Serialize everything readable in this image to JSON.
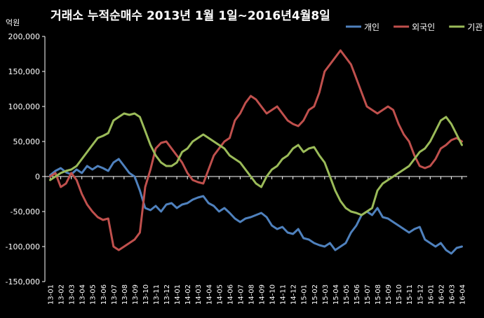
{
  "chart_data": {
    "type": "line",
    "title": "거래소  누적순매수 2013년 1월 1일~2016년4월8일",
    "ylabel": "억원",
    "xlabel": "",
    "ylim": [
      -150000,
      200000
    ],
    "yticks": [
      200000,
      150000,
      100000,
      50000,
      0,
      -50000,
      -100000,
      -150000
    ],
    "ytick_labels": [
      "200,000",
      "150,000",
      "100,000",
      "50,000",
      "0",
      "-50,000",
      "-100,000",
      "-150,000"
    ],
    "categories": [
      "13-01",
      "13-02",
      "13-03",
      "13-04",
      "13-05",
      "13-06",
      "13-07",
      "13-08",
      "13-09",
      "13-10",
      "13-11",
      "13-12",
      "14-01",
      "14-02",
      "14-03",
      "14-04",
      "14-05",
      "14-06",
      "14-07",
      "14-08",
      "14-09",
      "14-10",
      "14-11",
      "14-12",
      "15-01",
      "15-02",
      "15-03",
      "15-04",
      "15-05",
      "15-06",
      "15-07",
      "15-08",
      "15-09",
      "15-10",
      "15-11",
      "15-12",
      "16-01",
      "16-02",
      "16-03",
      "16-04"
    ],
    "legend_position": "top-right",
    "grid": false,
    "series": [
      {
        "name": "개인",
        "color": "#4F81BD",
        "points": [
          [
            0,
            2000
          ],
          [
            0.5,
            8000
          ],
          [
            1,
            12000
          ],
          [
            1.5,
            6000
          ],
          [
            2,
            3000
          ],
          [
            2.5,
            10000
          ],
          [
            3,
            5000
          ],
          [
            3.5,
            15000
          ],
          [
            4,
            10000
          ],
          [
            4.5,
            15000
          ],
          [
            5,
            12000
          ],
          [
            5.5,
            8000
          ],
          [
            6,
            20000
          ],
          [
            6.5,
            25000
          ],
          [
            7,
            15000
          ],
          [
            7.5,
            5000
          ],
          [
            8,
            0
          ],
          [
            8.5,
            -20000
          ],
          [
            9,
            -45000
          ],
          [
            9.5,
            -48000
          ],
          [
            10,
            -42000
          ],
          [
            10.5,
            -50000
          ],
          [
            11,
            -40000
          ],
          [
            11.5,
            -38000
          ],
          [
            12,
            -45000
          ],
          [
            12.5,
            -40000
          ],
          [
            13,
            -38000
          ],
          [
            13.5,
            -33000
          ],
          [
            14,
            -30000
          ],
          [
            14.5,
            -28000
          ],
          [
            15,
            -38000
          ],
          [
            15.5,
            -42000
          ],
          [
            16,
            -50000
          ],
          [
            16.5,
            -45000
          ],
          [
            17,
            -52000
          ],
          [
            17.5,
            -60000
          ],
          [
            18,
            -65000
          ],
          [
            18.5,
            -60000
          ],
          [
            19,
            -58000
          ],
          [
            19.5,
            -55000
          ],
          [
            20,
            -52000
          ],
          [
            20.5,
            -58000
          ],
          [
            21,
            -70000
          ],
          [
            21.5,
            -75000
          ],
          [
            22,
            -72000
          ],
          [
            22.5,
            -80000
          ],
          [
            23,
            -82000
          ],
          [
            23.5,
            -75000
          ],
          [
            24,
            -88000
          ],
          [
            24.5,
            -90000
          ],
          [
            25,
            -95000
          ],
          [
            25.5,
            -98000
          ],
          [
            26,
            -100000
          ],
          [
            26.5,
            -95000
          ],
          [
            27,
            -105000
          ],
          [
            27.5,
            -100000
          ],
          [
            28,
            -95000
          ],
          [
            28.5,
            -80000
          ],
          [
            29,
            -70000
          ],
          [
            29.5,
            -55000
          ],
          [
            30,
            -50000
          ],
          [
            30.5,
            -55000
          ],
          [
            31,
            -45000
          ],
          [
            31.5,
            -58000
          ],
          [
            32,
            -60000
          ],
          [
            32.5,
            -65000
          ],
          [
            33,
            -70000
          ],
          [
            33.5,
            -75000
          ],
          [
            34,
            -80000
          ],
          [
            34.5,
            -75000
          ],
          [
            35,
            -72000
          ],
          [
            35.5,
            -90000
          ],
          [
            36,
            -95000
          ],
          [
            36.5,
            -100000
          ],
          [
            37,
            -95000
          ],
          [
            37.5,
            -105000
          ],
          [
            38,
            -110000
          ],
          [
            38.5,
            -102000
          ],
          [
            39,
            -100000
          ]
        ]
      },
      {
        "name": "외국인",
        "color": "#C0504D",
        "points": [
          [
            0,
            0
          ],
          [
            0.5,
            5000
          ],
          [
            1,
            -15000
          ],
          [
            1.5,
            -10000
          ],
          [
            2,
            5000
          ],
          [
            2.5,
            -5000
          ],
          [
            3,
            -25000
          ],
          [
            3.5,
            -40000
          ],
          [
            4,
            -50000
          ],
          [
            4.5,
            -58000
          ],
          [
            5,
            -62000
          ],
          [
            5.5,
            -60000
          ],
          [
            6,
            -100000
          ],
          [
            6.5,
            -105000
          ],
          [
            7,
            -100000
          ],
          [
            7.5,
            -95000
          ],
          [
            8,
            -90000
          ],
          [
            8.5,
            -80000
          ],
          [
            9,
            -15000
          ],
          [
            9.5,
            10000
          ],
          [
            10,
            40000
          ],
          [
            10.5,
            48000
          ],
          [
            11,
            50000
          ],
          [
            11.5,
            40000
          ],
          [
            12,
            30000
          ],
          [
            12.5,
            20000
          ],
          [
            13,
            5000
          ],
          [
            13.5,
            -5000
          ],
          [
            14,
            -8000
          ],
          [
            14.5,
            -10000
          ],
          [
            15,
            10000
          ],
          [
            15.5,
            30000
          ],
          [
            16,
            40000
          ],
          [
            16.5,
            50000
          ],
          [
            17,
            55000
          ],
          [
            17.5,
            80000
          ],
          [
            18,
            90000
          ],
          [
            18.5,
            105000
          ],
          [
            19,
            115000
          ],
          [
            19.5,
            110000
          ],
          [
            20,
            100000
          ],
          [
            20.5,
            90000
          ],
          [
            21,
            95000
          ],
          [
            21.5,
            100000
          ],
          [
            22,
            90000
          ],
          [
            22.5,
            80000
          ],
          [
            23,
            75000
          ],
          [
            23.5,
            72000
          ],
          [
            24,
            80000
          ],
          [
            24.5,
            95000
          ],
          [
            25,
            100000
          ],
          [
            25.5,
            120000
          ],
          [
            26,
            150000
          ],
          [
            26.5,
            160000
          ],
          [
            27,
            170000
          ],
          [
            27.5,
            180000
          ],
          [
            28,
            170000
          ],
          [
            28.5,
            160000
          ],
          [
            29,
            140000
          ],
          [
            29.5,
            120000
          ],
          [
            30,
            100000
          ],
          [
            30.5,
            95000
          ],
          [
            31,
            90000
          ],
          [
            31.5,
            95000
          ],
          [
            32,
            100000
          ],
          [
            32.5,
            95000
          ],
          [
            33,
            75000
          ],
          [
            33.5,
            60000
          ],
          [
            34,
            50000
          ],
          [
            34.5,
            30000
          ],
          [
            35,
            15000
          ],
          [
            35.5,
            12000
          ],
          [
            36,
            15000
          ],
          [
            36.5,
            25000
          ],
          [
            37,
            40000
          ],
          [
            37.5,
            45000
          ],
          [
            38,
            52000
          ],
          [
            38.5,
            55000
          ],
          [
            39,
            50000
          ]
        ]
      },
      {
        "name": "기관",
        "color": "#9BBB59",
        "points": [
          [
            0,
            -5000
          ],
          [
            0.5,
            0
          ],
          [
            1,
            5000
          ],
          [
            1.5,
            8000
          ],
          [
            2,
            10000
          ],
          [
            2.5,
            15000
          ],
          [
            3,
            25000
          ],
          [
            3.5,
            35000
          ],
          [
            4,
            45000
          ],
          [
            4.5,
            55000
          ],
          [
            5,
            58000
          ],
          [
            5.5,
            62000
          ],
          [
            6,
            80000
          ],
          [
            6.5,
            85000
          ],
          [
            7,
            90000
          ],
          [
            7.5,
            88000
          ],
          [
            8,
            90000
          ],
          [
            8.5,
            85000
          ],
          [
            9,
            65000
          ],
          [
            9.5,
            45000
          ],
          [
            10,
            30000
          ],
          [
            10.5,
            20000
          ],
          [
            11,
            15000
          ],
          [
            11.5,
            15000
          ],
          [
            12,
            20000
          ],
          [
            12.5,
            35000
          ],
          [
            13,
            40000
          ],
          [
            13.5,
            50000
          ],
          [
            14,
            55000
          ],
          [
            14.5,
            60000
          ],
          [
            15,
            55000
          ],
          [
            15.5,
            50000
          ],
          [
            16,
            45000
          ],
          [
            16.5,
            40000
          ],
          [
            17,
            30000
          ],
          [
            17.5,
            25000
          ],
          [
            18,
            20000
          ],
          [
            18.5,
            10000
          ],
          [
            19,
            0
          ],
          [
            19.5,
            -10000
          ],
          [
            20,
            -15000
          ],
          [
            20.5,
            0
          ],
          [
            21,
            10000
          ],
          [
            21.5,
            15000
          ],
          [
            22,
            25000
          ],
          [
            22.5,
            30000
          ],
          [
            23,
            40000
          ],
          [
            23.5,
            45000
          ],
          [
            24,
            35000
          ],
          [
            24.5,
            40000
          ],
          [
            25,
            42000
          ],
          [
            25.5,
            30000
          ],
          [
            26,
            20000
          ],
          [
            26.5,
            0
          ],
          [
            27,
            -20000
          ],
          [
            27.5,
            -35000
          ],
          [
            28,
            -45000
          ],
          [
            28.5,
            -50000
          ],
          [
            29,
            -52000
          ],
          [
            29.5,
            -55000
          ],
          [
            30,
            -50000
          ],
          [
            30.5,
            -45000
          ],
          [
            31,
            -20000
          ],
          [
            31.5,
            -10000
          ],
          [
            32,
            -5000
          ],
          [
            32.5,
            0
          ],
          [
            33,
            5000
          ],
          [
            33.5,
            10000
          ],
          [
            34,
            15000
          ],
          [
            34.5,
            25000
          ],
          [
            35,
            35000
          ],
          [
            35.5,
            40000
          ],
          [
            36,
            50000
          ],
          [
            36.5,
            65000
          ],
          [
            37,
            80000
          ],
          [
            37.5,
            85000
          ],
          [
            38,
            75000
          ],
          [
            38.5,
            60000
          ],
          [
            39,
            45000
          ]
        ]
      }
    ]
  }
}
